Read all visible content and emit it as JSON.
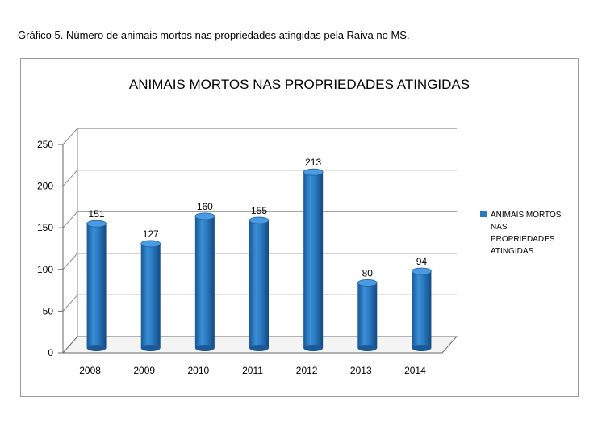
{
  "caption": "Gráfico 5. Número de animais mortos nas propriedades atingidas pela Raiva no MS.",
  "chart_data": {
    "type": "bar",
    "title": "ANIMAIS MORTOS NAS PROPRIEDADES ATINGIDAS",
    "categories": [
      "2008",
      "2009",
      "2010",
      "2011",
      "2012",
      "2013",
      "2014"
    ],
    "series": [
      {
        "name": "ANIMAIS MORTOS NAS PROPRIEDADES ATINGIDAS",
        "values": [
          151,
          127,
          160,
          155,
          213,
          80,
          94
        ]
      }
    ],
    "legend_lines": [
      "ANIMAIS MORTOS",
      "NAS",
      "PROPRIEDADES",
      "ATINGIDAS"
    ],
    "yticks": [
      0,
      50,
      100,
      150,
      200,
      250
    ],
    "ylim": [
      0,
      250
    ],
    "grid": true,
    "legend_position": "right",
    "bar_color": "#2a78c0"
  }
}
